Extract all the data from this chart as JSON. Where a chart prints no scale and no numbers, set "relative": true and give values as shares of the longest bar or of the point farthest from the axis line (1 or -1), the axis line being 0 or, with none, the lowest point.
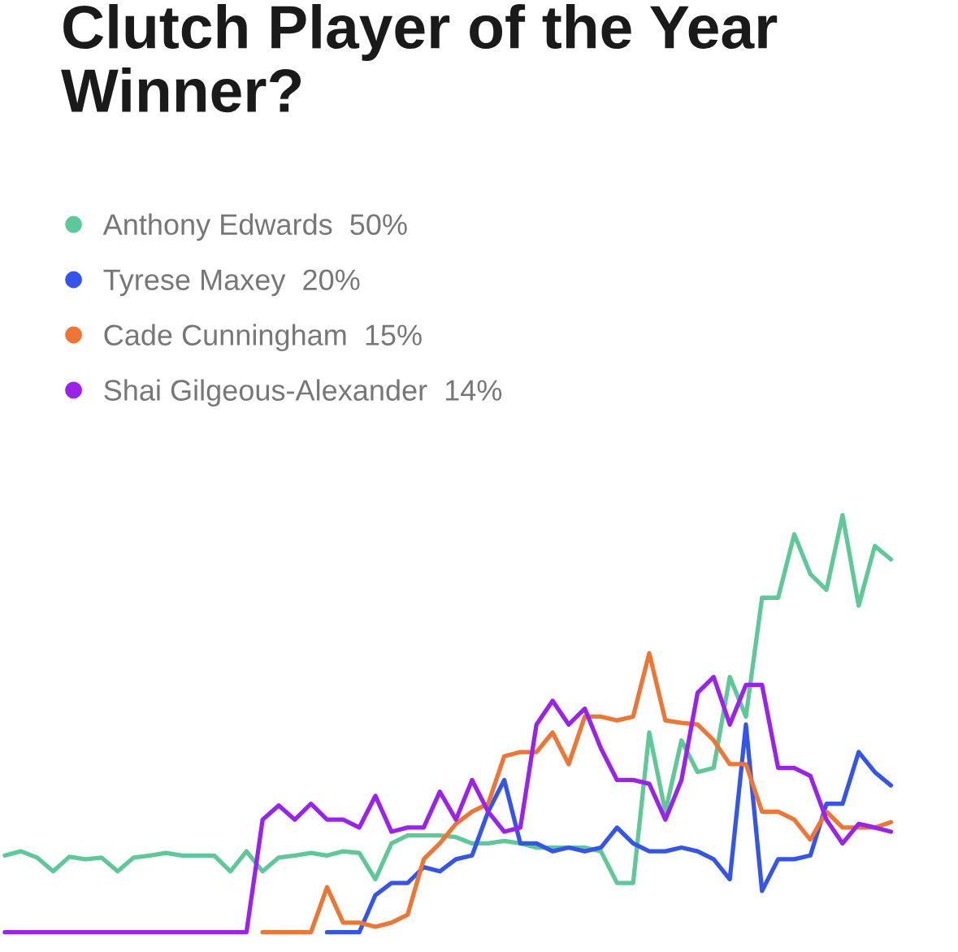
{
  "chart_data": {
    "type": "line",
    "title": "Clutch Player of the Year Winner?",
    "relative": true,
    "legend": "top left",
    "line_style": "solid",
    "categories": [
      null,
      null,
      null,
      null,
      null,
      null,
      null,
      null,
      null,
      null,
      null,
      null,
      null,
      null,
      null,
      null,
      null,
      null,
      null,
      null,
      null,
      null,
      null,
      null,
      null,
      null,
      null,
      null,
      null,
      null,
      null,
      null,
      null,
      null,
      null,
      null,
      null,
      null,
      null,
      null,
      null,
      null,
      null,
      null,
      null,
      null,
      null,
      null,
      null,
      null,
      null,
      null,
      null,
      null,
      null,
      null
    ],
    "series": [
      {
        "name": "Anthony Edwards  50%",
        "color": "#5ec998",
        "values": [
          0.184,
          0.194,
          0.179,
          0.146,
          0.181,
          0.175,
          0.179,
          0.146,
          0.179,
          0.184,
          0.19,
          0.184,
          0.184,
          0.184,
          0.146,
          0.194,
          0.146,
          0.179,
          0.184,
          0.19,
          0.184,
          0.194,
          0.19,
          0.127,
          0.213,
          0.232,
          0.232,
          0.232,
          0.228,
          0.213,
          0.213,
          0.219,
          0.213,
          0.203,
          0.203,
          0.203,
          0.203,
          0.194,
          0.118,
          0.118,
          0.479,
          0.289,
          0.46,
          0.384,
          0.394,
          0.612,
          0.517,
          0.802,
          0.802,
          0.954,
          0.859,
          0.821,
          1.0,
          0.783,
          0.926,
          0.894
        ]
      },
      {
        "name": "Tyrese Maxey  20%",
        "color": "#3355ee",
        "values": [
          null,
          null,
          null,
          null,
          null,
          null,
          null,
          null,
          null,
          null,
          null,
          null,
          null,
          null,
          null,
          null,
          null,
          null,
          null,
          null,
          0,
          0,
          0,
          0.089,
          0.118,
          0.118,
          0.156,
          0.146,
          0.175,
          0.184,
          0.289,
          0.365,
          0.213,
          0.213,
          0.194,
          0.203,
          0.194,
          0.203,
          0.251,
          0.213,
          0.194,
          0.194,
          0.203,
          0.194,
          0.175,
          0.127,
          0.498,
          0.099,
          0.175,
          0.175,
          0.184,
          0.308,
          0.308,
          0.432,
          0.384,
          0.352
        ]
      },
      {
        "name": "Cade Cunningham  15%",
        "color": "#ef7532",
        "values": [
          null,
          null,
          null,
          null,
          null,
          null,
          null,
          null,
          null,
          null,
          null,
          null,
          null,
          null,
          null,
          null,
          0,
          0,
          0,
          0,
          0.108,
          0.023,
          0.023,
          0.013,
          0.023,
          0.042,
          0.175,
          0.213,
          0.26,
          0.289,
          0.308,
          0.422,
          0.432,
          0.432,
          0.479,
          0.403,
          0.517,
          0.517,
          0.508,
          0.517,
          0.669,
          0.508,
          0.502,
          0.498,
          0.46,
          0.403,
          0.403,
          0.289,
          0.289,
          0.27,
          0.222,
          0.289,
          0.251,
          0.251,
          0.251,
          0.264
        ]
      },
      {
        "name": "Shai Gilgeous-Alexander  14%",
        "color": "#9b22ee",
        "values": [
          0,
          0,
          0,
          0,
          0,
          0,
          0,
          0,
          0,
          0,
          0,
          0,
          0,
          0,
          0,
          0,
          0.27,
          0.304,
          0.27,
          0.308,
          0.27,
          0.27,
          0.251,
          0.327,
          0.241,
          0.251,
          0.251,
          0.337,
          0.27,
          0.365,
          0.289,
          0.241,
          0.251,
          0.498,
          0.555,
          0.498,
          0.536,
          0.441,
          0.365,
          0.365,
          0.356,
          0.27,
          0.365,
          0.574,
          0.612,
          0.498,
          0.593,
          0.593,
          0.394,
          0.394,
          0.375,
          0.27,
          0.213,
          0.26,
          0.251,
          0.241
        ]
      }
    ]
  }
}
